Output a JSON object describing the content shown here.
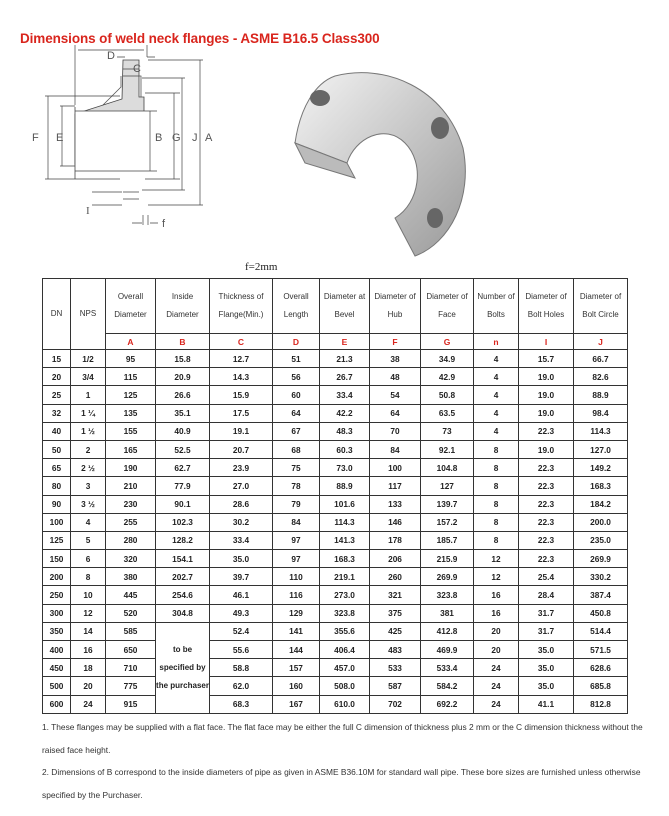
{
  "title": "Dimensions of weld neck flanges - ASME B16.5 Class300",
  "diagram": {
    "labels": {
      "D": "D",
      "C": "C",
      "F": "F",
      "E": "E",
      "B": "B",
      "G": "G",
      "J": "J",
      "A": "A",
      "I": "I",
      "f": "f"
    },
    "note": "f=2mm"
  },
  "table": {
    "headers": [
      "DN",
      "NPS",
      "Overall Diameter",
      "Inside Diameter",
      "Thickness of Flange(Min.)",
      "Overall Length",
      "Diameter at Bevel",
      "Diameter of Hub",
      "Diameter of Face",
      "Number of Bolts",
      "Diameter of Bolt Holes",
      "Diameter of Bolt Circle"
    ],
    "letters": [
      "A",
      "B",
      "C",
      "D",
      "E",
      "F",
      "G",
      "n",
      "I",
      "J"
    ],
    "spec_text": "to be specified by the purchaser",
    "rows": [
      [
        "15",
        "1/2",
        "95",
        "15.8",
        "12.7",
        "51",
        "21.3",
        "38",
        "34.9",
        "4",
        "15.7",
        "66.7"
      ],
      [
        "20",
        "3/4",
        "115",
        "20.9",
        "14.3",
        "56",
        "26.7",
        "48",
        "42.9",
        "4",
        "19.0",
        "82.6"
      ],
      [
        "25",
        "1",
        "125",
        "26.6",
        "15.9",
        "60",
        "33.4",
        "54",
        "50.8",
        "4",
        "19.0",
        "88.9"
      ],
      [
        "32",
        "1 ¼",
        "135",
        "35.1",
        "17.5",
        "64",
        "42.2",
        "64",
        "63.5",
        "4",
        "19.0",
        "98.4"
      ],
      [
        "40",
        "1 ½",
        "155",
        "40.9",
        "19.1",
        "67",
        "48.3",
        "70",
        "73",
        "4",
        "22.3",
        "114.3"
      ],
      [
        "50",
        "2",
        "165",
        "52.5",
        "20.7",
        "68",
        "60.3",
        "84",
        "92.1",
        "8",
        "19.0",
        "127.0"
      ],
      [
        "65",
        "2 ½",
        "190",
        "62.7",
        "23.9",
        "75",
        "73.0",
        "100",
        "104.8",
        "8",
        "22.3",
        "149.2"
      ],
      [
        "80",
        "3",
        "210",
        "77.9",
        "27.0",
        "78",
        "88.9",
        "117",
        "127",
        "8",
        "22.3",
        "168.3"
      ],
      [
        "90",
        "3 ½",
        "230",
        "90.1",
        "28.6",
        "79",
        "101.6",
        "133",
        "139.7",
        "8",
        "22.3",
        "184.2"
      ],
      [
        "100",
        "4",
        "255",
        "102.3",
        "30.2",
        "84",
        "114.3",
        "146",
        "157.2",
        "8",
        "22.3",
        "200.0"
      ],
      [
        "125",
        "5",
        "280",
        "128.2",
        "33.4",
        "97",
        "141.3",
        "178",
        "185.7",
        "8",
        "22.3",
        "235.0"
      ],
      [
        "150",
        "6",
        "320",
        "154.1",
        "35.0",
        "97",
        "168.3",
        "206",
        "215.9",
        "12",
        "22.3",
        "269.9"
      ],
      [
        "200",
        "8",
        "380",
        "202.7",
        "39.7",
        "110",
        "219.1",
        "260",
        "269.9",
        "12",
        "25.4",
        "330.2"
      ],
      [
        "250",
        "10",
        "445",
        "254.6",
        "46.1",
        "116",
        "273.0",
        "321",
        "323.8",
        "16",
        "28.4",
        "387.4"
      ],
      [
        "300",
        "12",
        "520",
        "304.8",
        "49.3",
        "129",
        "323.8",
        "375",
        "381",
        "16",
        "31.7",
        "450.8"
      ],
      [
        "350",
        "14",
        "585",
        "",
        "52.4",
        "141",
        "355.6",
        "425",
        "412.8",
        "20",
        "31.7",
        "514.4"
      ],
      [
        "400",
        "16",
        "650",
        "",
        "55.6",
        "144",
        "406.4",
        "483",
        "469.9",
        "20",
        "35.0",
        "571.5"
      ],
      [
        "450",
        "18",
        "710",
        "",
        "58.8",
        "157",
        "457.0",
        "533",
        "533.4",
        "24",
        "35.0",
        "628.6"
      ],
      [
        "500",
        "20",
        "775",
        "",
        "62.0",
        "160",
        "508.0",
        "587",
        "584.2",
        "24",
        "35.0",
        "685.8"
      ],
      [
        "600",
        "24",
        "915",
        "",
        "68.3",
        "167",
        "610.0",
        "702",
        "692.2",
        "24",
        "41.1",
        "812.8"
      ]
    ]
  },
  "notes": [
    "1. These flanges may be supplied with a flat face. The flat face may be either the full C dimension of thickness plus 2 mm or the C dimension thickness without the raised face height.",
    "2. Dimensions of B correspond to the inside diameters of pipe as given in ASME B36.10M for standard wall pipe. These bore sizes are furnished unless otherwise specified by the Purchaser."
  ]
}
